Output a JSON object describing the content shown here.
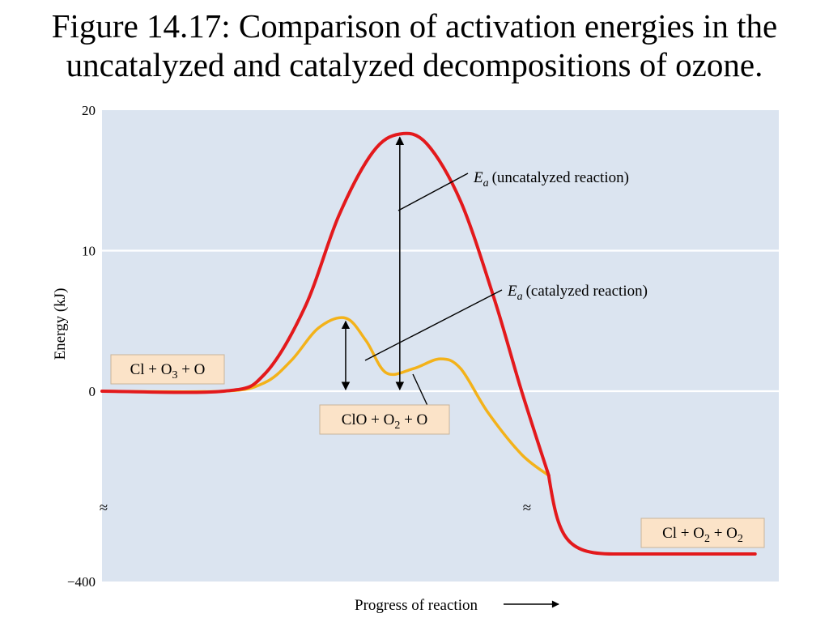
{
  "figure": {
    "title_line1": "Figure 14.17: Comparison of activation energies in the",
    "title_line2": "uncatalyzed and catalyzed decompositions of ozone."
  },
  "chart_data": {
    "type": "line",
    "xlabel": "Progress of reaction",
    "ylabel": "Energy (kJ)",
    "y_ticks": [
      "20",
      "10",
      "0",
      "−400"
    ],
    "y_axis_break": true,
    "grid": true,
    "colors": {
      "plot_bg": "#dbe4f0",
      "uncatalyzed": "#e3191c",
      "catalyzed": "#f3b21a",
      "label_box": "#fbe3c8"
    },
    "series": [
      {
        "key": "uncatalyzed",
        "points": [
          [
            0,
            0
          ],
          [
            0.18,
            0
          ],
          [
            0.24,
            1.2
          ],
          [
            0.3,
            6.0
          ],
          [
            0.35,
            12.5
          ],
          [
            0.4,
            17.0
          ],
          [
            0.44,
            18.3
          ],
          [
            0.48,
            17.6
          ],
          [
            0.53,
            13.5
          ],
          [
            0.58,
            6.5
          ],
          [
            0.62,
            0.0
          ],
          [
            0.66,
            -6.0
          ]
        ]
      },
      {
        "key": "catalyzed",
        "points": [
          [
            0,
            0
          ],
          [
            0.18,
            0
          ],
          [
            0.24,
            0.6
          ],
          [
            0.28,
            2.2
          ],
          [
            0.32,
            4.5
          ],
          [
            0.36,
            5.2
          ],
          [
            0.39,
            3.6
          ],
          [
            0.42,
            1.3
          ],
          [
            0.46,
            1.6
          ],
          [
            0.5,
            2.3
          ],
          [
            0.53,
            1.6
          ],
          [
            0.57,
            -1.5
          ],
          [
            0.62,
            -4.5
          ],
          [
            0.66,
            -6.0
          ]
        ]
      }
    ],
    "below_break": {
      "from_y": -6.0,
      "final_energy": "-400"
    },
    "arrows": [
      {
        "name": "ea-uncatalyzed",
        "x": 0.44,
        "y_from": 0,
        "y_to": 18.3
      },
      {
        "name": "ea-catalyzed",
        "x": 0.36,
        "y_from": 0,
        "y_to": 5.2
      }
    ],
    "annotations": {
      "ea_symbol": "E",
      "ea_sub": "a",
      "uncatalyzed_text": "(uncatalyzed reaction)",
      "catalyzed_text": "(catalyzed reaction)"
    },
    "species_labels": {
      "reactants": [
        {
          "t": "Cl + O"
        },
        {
          "t": "3",
          "sub": true
        },
        {
          "t": " + O"
        }
      ],
      "intermediate": [
        {
          "t": "ClO + O"
        },
        {
          "t": "2",
          "sub": true
        },
        {
          "t": " + O"
        }
      ],
      "products": [
        {
          "t": "Cl + O"
        },
        {
          "t": "2",
          "sub": true
        },
        {
          "t": " + O"
        },
        {
          "t": "2",
          "sub": true
        }
      ]
    },
    "break_symbol": "≈"
  }
}
